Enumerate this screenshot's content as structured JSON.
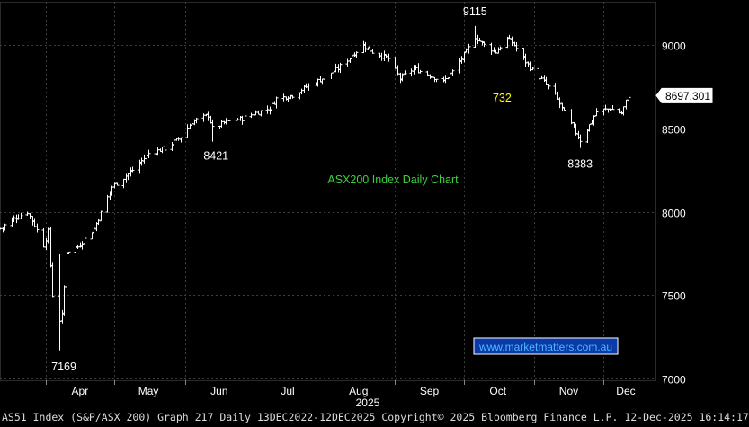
{
  "chart_data": {
    "type": "ohlc",
    "title": "ASX200 Index Daily Chart",
    "watermark": "www.marketmatters.com.au",
    "last_price_tag": "8697.301",
    "x_year_label": "2025",
    "months": [
      "Apr",
      "May",
      "Jun",
      "Jul",
      "Aug",
      "Sep",
      "Oct",
      "Nov",
      "Dec"
    ],
    "yticks": [
      7000,
      7500,
      8000,
      8500,
      9000
    ],
    "ylim": [
      6990,
      9260
    ],
    "grid": true,
    "annotations": [
      {
        "text": "7169",
        "x": "2025-04-07",
        "y": 7169
      },
      {
        "text": "8421",
        "x": "2025-06-13",
        "y": 8421
      },
      {
        "text": "9115",
        "x": "2025-10-06",
        "y": 9115
      },
      {
        "text": "732",
        "x": "2025-10-08",
        "y": 8650
      },
      {
        "text": "8383",
        "x": "2025-11-21",
        "y": 8383
      }
    ],
    "anchors": [
      [
        "2025-03-12",
        7900
      ],
      [
        "2025-03-18",
        7960
      ],
      [
        "2025-03-24",
        8000
      ],
      [
        "2025-03-27",
        7920
      ],
      [
        "2025-03-31",
        7800
      ],
      [
        "2025-04-02",
        7880
      ],
      [
        "2025-04-03",
        7680
      ],
      [
        "2025-04-04",
        7500
      ],
      [
        "2025-04-07",
        7350
      ],
      [
        "2025-04-08",
        7380
      ],
      [
        "2025-04-09",
        7550
      ],
      [
        "2025-04-10",
        7760
      ],
      [
        "2025-04-15",
        7790
      ],
      [
        "2025-04-22",
        7900
      ],
      [
        "2025-04-30",
        8150
      ],
      [
        "2025-05-09",
        8250
      ],
      [
        "2025-05-16",
        8350
      ],
      [
        "2025-05-23",
        8380
      ],
      [
        "2025-05-30",
        8450
      ],
      [
        "2025-06-04",
        8540
      ],
      [
        "2025-06-11",
        8580
      ],
      [
        "2025-06-13",
        8500
      ],
      [
        "2025-06-19",
        8540
      ],
      [
        "2025-06-26",
        8560
      ],
      [
        "2025-07-03",
        8600
      ],
      [
        "2025-07-08",
        8620
      ],
      [
        "2025-07-11",
        8680
      ],
      [
        "2025-07-18",
        8700
      ],
      [
        "2025-07-24",
        8750
      ],
      [
        "2025-07-31",
        8800
      ],
      [
        "2025-08-07",
        8860
      ],
      [
        "2025-08-13",
        8940
      ],
      [
        "2025-08-18",
        9000
      ],
      [
        "2025-08-22",
        8960
      ],
      [
        "2025-08-29",
        8920
      ],
      [
        "2025-09-03",
        8800
      ],
      [
        "2025-09-09",
        8860
      ],
      [
        "2025-09-16",
        8820
      ],
      [
        "2025-09-22",
        8780
      ],
      [
        "2025-09-26",
        8840
      ],
      [
        "2025-10-02",
        8960
      ],
      [
        "2025-10-06",
        9050
      ],
      [
        "2025-10-10",
        9000
      ],
      [
        "2025-10-15",
        8960
      ],
      [
        "2025-10-20",
        9040
      ],
      [
        "2025-10-23",
        9000
      ],
      [
        "2025-10-28",
        8900
      ],
      [
        "2025-10-31",
        8850
      ],
      [
        "2025-11-05",
        8780
      ],
      [
        "2025-11-10",
        8700
      ],
      [
        "2025-11-13",
        8620
      ],
      [
        "2025-11-18",
        8500
      ],
      [
        "2025-11-21",
        8430
      ],
      [
        "2025-11-25",
        8520
      ],
      [
        "2025-11-28",
        8600
      ],
      [
        "2025-12-04",
        8620
      ],
      [
        "2025-12-09",
        8590
      ],
      [
        "2025-12-12",
        8697.3
      ]
    ]
  },
  "footer": {
    "text": "AS51 Index (S&P/ASX 200) Graph 217 Daily 13DEC2022-12DEC2025  Copyright© 2025 Bloomberg Finance L.P.  12-Dec-2025 16:14:17"
  },
  "colors": {
    "background": "#000000",
    "grid": "#3c3c3c",
    "bars": "#ffffff",
    "title": "#3ecf3e",
    "watermark_bg": "#0a3aa8",
    "watermark_text": "#4fb8ff",
    "annotation": "#ffffff",
    "highlight": "#ffff00"
  }
}
